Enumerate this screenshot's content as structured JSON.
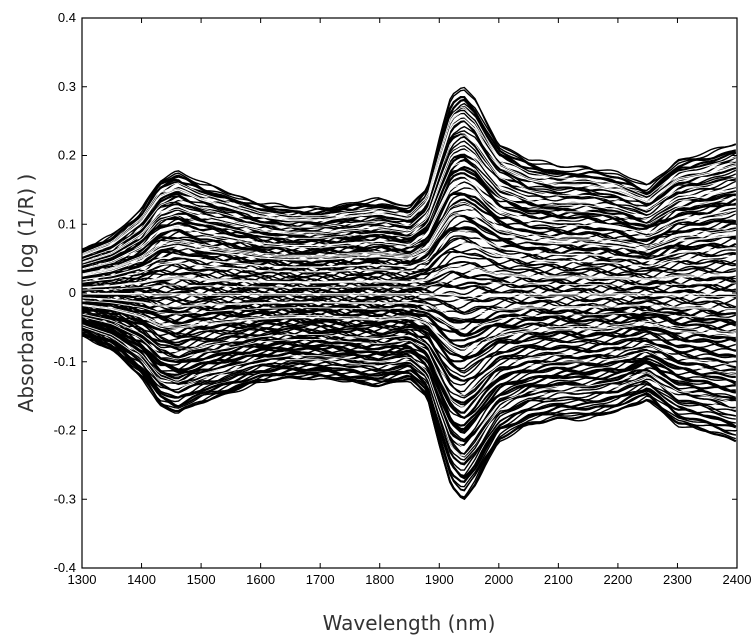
{
  "chart_data": {
    "type": "line",
    "title": "",
    "xlabel": "Wavelength (nm)",
    "ylabel": "Absorbance ( log (1/R) )",
    "xlim": [
      1300,
      2400
    ],
    "ylim": [
      -0.4,
      0.4
    ],
    "xticks": [
      1300,
      1400,
      1500,
      1600,
      1700,
      1800,
      1900,
      2000,
      2100,
      2200,
      2300,
      2400
    ],
    "yticks": [
      -0.4,
      -0.3,
      -0.2,
      -0.1,
      0,
      0.1,
      0.2,
      0.3,
      0.4
    ],
    "ytick_labels": [
      "-0.4",
      "-0.3",
      "-0.2",
      "-0.1",
      "0",
      "0.1",
      "0.2",
      "0.3",
      "0.4"
    ],
    "grid": false,
    "legend": "none",
    "line_color": "#000000",
    "envelope": {
      "x": [
        1300,
        1350,
        1400,
        1430,
        1460,
        1500,
        1600,
        1650,
        1700,
        1750,
        1800,
        1850,
        1880,
        1900,
        1920,
        1940,
        1960,
        1980,
        2000,
        2050,
        2100,
        2150,
        2200,
        2250,
        2300,
        2350,
        2400
      ],
      "upper": [
        0.065,
        0.085,
        0.125,
        0.17,
        0.183,
        0.165,
        0.135,
        0.128,
        0.128,
        0.135,
        0.14,
        0.13,
        0.16,
        0.23,
        0.295,
        0.31,
        0.29,
        0.255,
        0.225,
        0.2,
        0.19,
        0.19,
        0.18,
        0.16,
        0.2,
        0.21,
        0.225
      ],
      "lower": [
        -0.065,
        -0.085,
        -0.125,
        -0.17,
        -0.183,
        -0.165,
        -0.135,
        -0.128,
        -0.128,
        -0.135,
        -0.14,
        -0.13,
        -0.16,
        -0.23,
        -0.295,
        -0.315,
        -0.29,
        -0.255,
        -0.225,
        -0.2,
        -0.19,
        -0.19,
        -0.18,
        -0.16,
        -0.2,
        -0.21,
        -0.225
      ]
    }
  }
}
